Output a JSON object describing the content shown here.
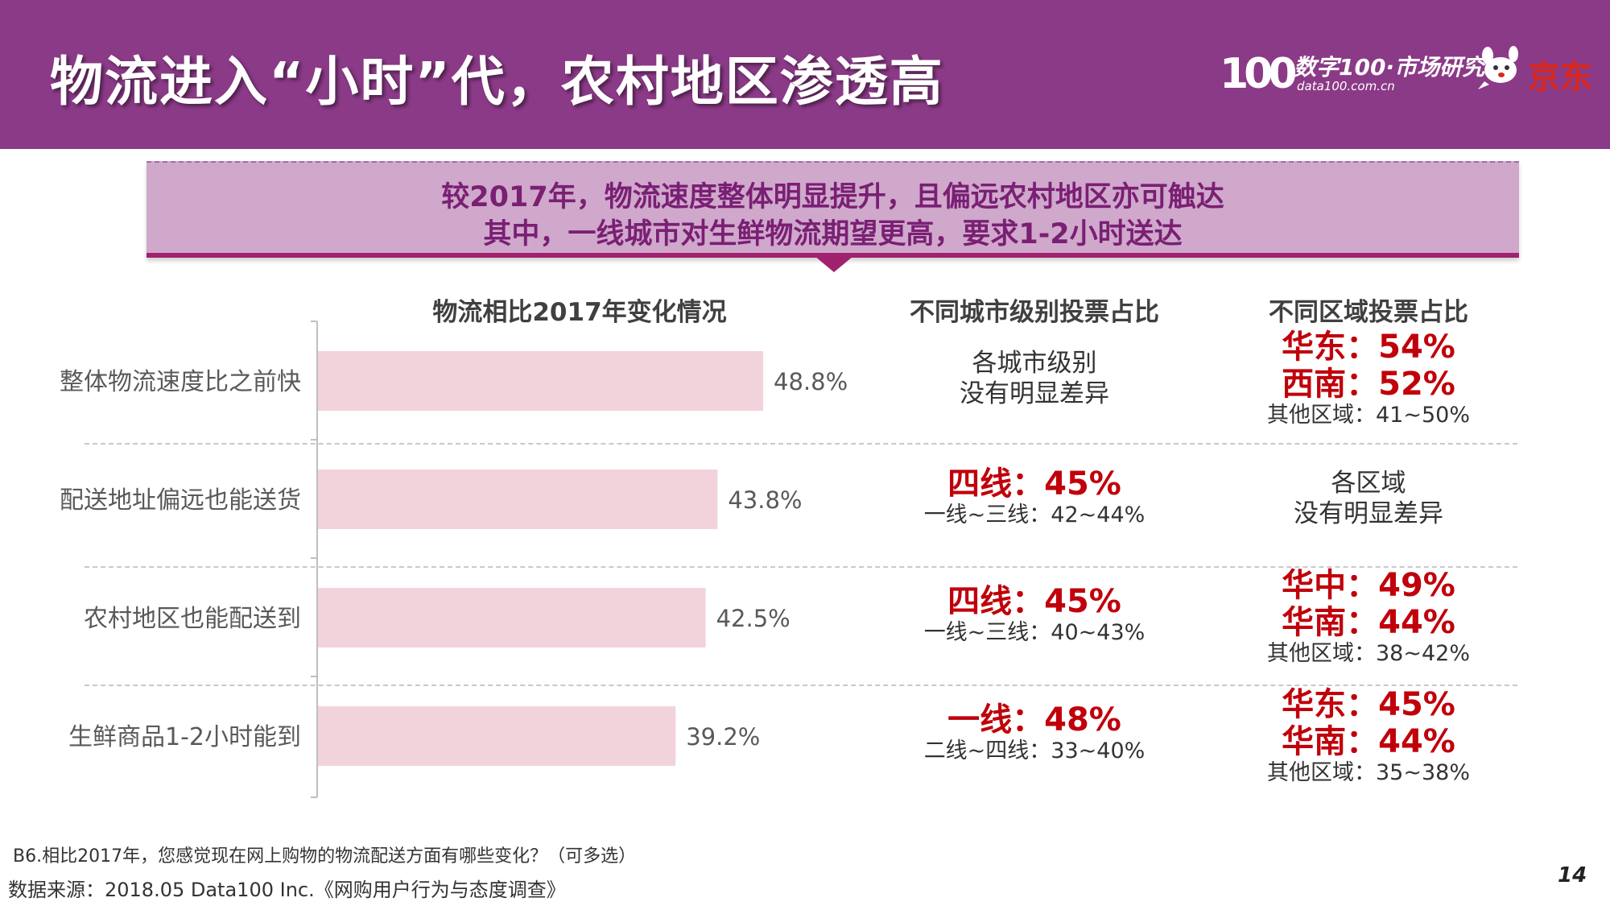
{
  "header": {
    "title": "物流进入“小时”代，农村地区渗透高",
    "logo_data100_mark": "100",
    "logo_data100_name": "数字100·市场研究",
    "logo_data100_url": "data100.com.cn",
    "logo_jd": "京东"
  },
  "banner": {
    "line1": "较2017年，物流速度整体明显提升，且偏远农村地区亦可触达",
    "line2": "其中，一线城市对生鲜物流期望更高，要求1-2小时送达"
  },
  "columns": {
    "chart_heading": "物流相比2017年变化情况",
    "city_heading": "不同城市级别投票占比",
    "region_heading": "不同区域投票占比"
  },
  "chart_data": {
    "type": "bar",
    "orientation": "horizontal",
    "title": "物流相比2017年变化情况",
    "categories": [
      "整体物流速度比之前快",
      "配送地址偏远也能送货",
      "农村地区也能配送到",
      "生鲜商品1-2小时能到"
    ],
    "values": [
      48.8,
      43.8,
      42.5,
      39.2
    ],
    "value_labels": [
      "48.8%",
      "43.8%",
      "42.5%",
      "39.2%"
    ],
    "unit": "%",
    "xlim": [
      0,
      60
    ],
    "bar_color": "#f2d3dc",
    "grid": false
  },
  "rows": [
    {
      "city": {
        "type": "plain",
        "line1": "各城市级别",
        "line2": "没有明显差异"
      },
      "region": {
        "type": "highlight",
        "hl1": "华东：54%",
        "hl2": "西南：52%",
        "other": "其他区域：41~50%"
      }
    },
    {
      "city": {
        "type": "highlight",
        "main": "四线：45%",
        "sub": "一线~三线：42~44%"
      },
      "region": {
        "type": "plain",
        "line1": "各区域",
        "line2": "没有明显差异"
      }
    },
    {
      "city": {
        "type": "highlight",
        "main": "四线：45%",
        "sub": "一线~三线：40~43%"
      },
      "region": {
        "type": "highlight",
        "hl1": "华中：49%",
        "hl2": "华南：44%",
        "other": "其他区域：38~42%"
      }
    },
    {
      "city": {
        "type": "highlight",
        "main": "一线：48%",
        "sub": "二线~四线：33~40%"
      },
      "region": {
        "type": "highlight",
        "hl1": "华东：45%",
        "hl2": "华南：44%",
        "other": "其他区域：35~38%"
      }
    }
  ],
  "footer": {
    "question": "B6.相比2017年，您感觉现在网上购物的物流配送方面有哪些变化？（可多选）",
    "source": "数据来源：2018.05 Data100 Inc.《网购用户行为与态度调查》",
    "page_number": "14"
  },
  "colors": {
    "header_bg": "#8b3a87",
    "banner_bg": "#cfa8cc",
    "banner_text": "#7a1f73",
    "accent_red": "#c0000b",
    "bar": "#f2d3dc"
  }
}
